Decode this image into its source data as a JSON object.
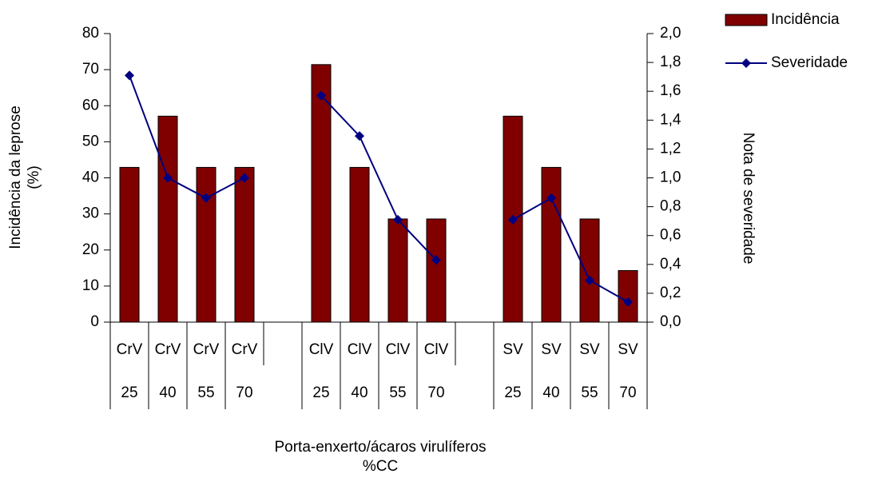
{
  "chart_data": {
    "type": "bar-line",
    "categories": [
      "CrV",
      "CrV",
      "CrV",
      "CrV",
      null,
      "ClV",
      "ClV",
      "ClV",
      "ClV",
      null,
      "SV",
      "SV",
      "SV",
      "SV"
    ],
    "subcategories": [
      "25",
      "40",
      "55",
      "70",
      null,
      "25",
      "40",
      "55",
      "70",
      null,
      "25",
      "40",
      "55",
      "70"
    ],
    "x_label": [
      "Porta-enxerto/ácaros virulíferos",
      "%CC"
    ],
    "y_label": [
      "Incidência da leprose",
      "(%)"
    ],
    "y2_label": "Nota de severidade",
    "ylim": [
      0,
      80
    ],
    "yticks": [
      0,
      10,
      20,
      30,
      40,
      50,
      60,
      70,
      80
    ],
    "y2lim": [
      0,
      2
    ],
    "y2ticks": [
      {
        "value": 0,
        "label": "0,0"
      },
      {
        "value": 0.2,
        "label": "0,2"
      },
      {
        "value": 0.4,
        "label": "0,4"
      },
      {
        "value": 0.6,
        "label": "0,6"
      },
      {
        "value": 0.8,
        "label": "0,8"
      },
      {
        "value": 1.0,
        "label": "1,0"
      },
      {
        "value": 1.2,
        "label": "1,2"
      },
      {
        "value": 1.4,
        "label": "1,4"
      },
      {
        "value": 1.6,
        "label": "1,6"
      },
      {
        "value": 1.8,
        "label": "1,8"
      },
      {
        "value": 2.0,
        "label": "2,0"
      }
    ],
    "legend": "top-right",
    "series": [
      {
        "name": "Incidência",
        "type": "bar",
        "color": "#800000",
        "values": [
          42.9,
          57.1,
          42.9,
          42.9,
          null,
          71.4,
          42.9,
          28.6,
          28.6,
          null,
          57.1,
          42.9,
          28.6,
          14.3
        ]
      },
      {
        "name": "Severidade",
        "type": "line",
        "axis": "y2",
        "color": "#000080",
        "values": [
          1.71,
          1.0,
          0.86,
          1.0,
          null,
          1.57,
          1.29,
          0.71,
          0.43,
          null,
          0.71,
          0.86,
          0.29,
          0.14
        ]
      }
    ]
  }
}
